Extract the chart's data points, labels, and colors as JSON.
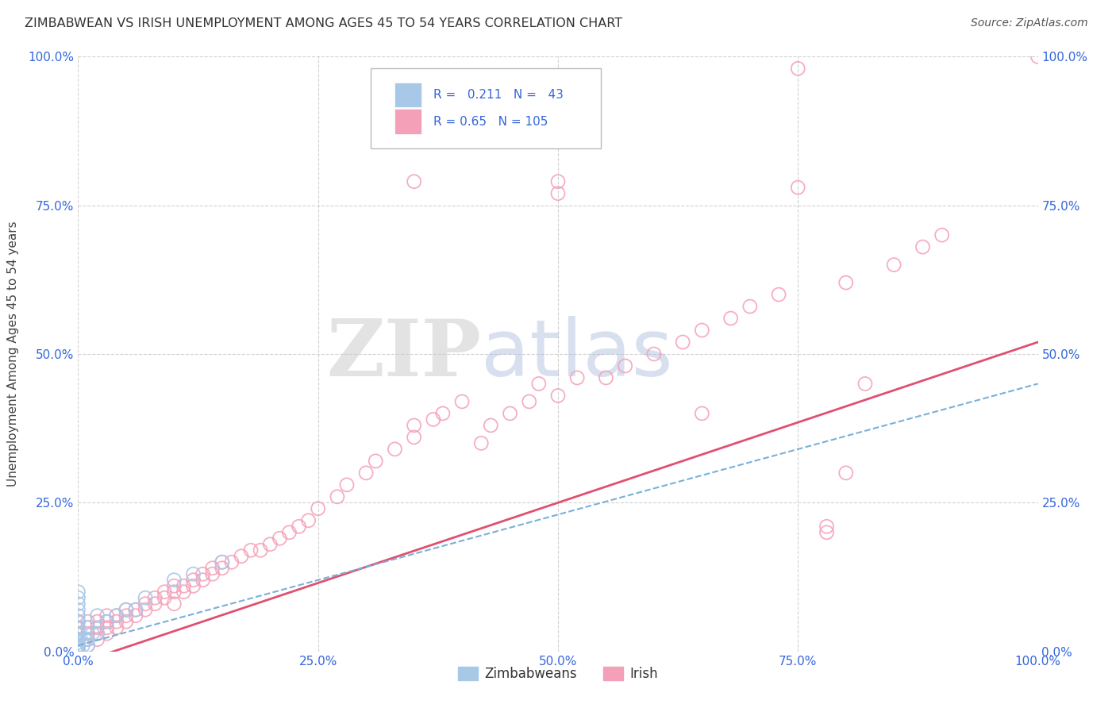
{
  "title": "ZIMBABWEAN VS IRISH UNEMPLOYMENT AMONG AGES 45 TO 54 YEARS CORRELATION CHART",
  "source": "Source: ZipAtlas.com",
  "ylabel": "Unemployment Among Ages 45 to 54 years",
  "r_zimbabwean": 0.211,
  "n_zimbabwean": 43,
  "r_irish": 0.65,
  "n_irish": 105,
  "zim_color": "#a8c8e8",
  "zim_fill_color": "#a8c8e8",
  "irish_color": "#f4a0b8",
  "irish_fill_color": "#f4a0b8",
  "zim_trend_color": "#7ab0d8",
  "irish_trend_color": "#e05070",
  "watermark_zip": "ZIP",
  "watermark_atlas": "atlas",
  "background_color": "#ffffff",
  "grid_color": "#cccccc",
  "tick_label_color": "#3366dd",
  "title_color": "#333333",
  "legend_text_color": "#3366dd",
  "xlim": [
    0,
    1
  ],
  "ylim": [
    0,
    1
  ],
  "xticks": [
    0,
    0.25,
    0.5,
    0.75,
    1.0
  ],
  "yticks": [
    0,
    0.25,
    0.5,
    0.75,
    1.0
  ],
  "xtick_labels": [
    "0.0%",
    "25.0%",
    "50.0%",
    "75.0%",
    "100.0%"
  ],
  "ytick_labels": [
    "0.0%",
    "25.0%",
    "50.0%",
    "75.0%",
    "100.0%"
  ],
  "irish_trend_x": [
    0.0,
    1.0
  ],
  "irish_trend_y": [
    -0.02,
    0.52
  ],
  "zim_trend_x": [
    0.0,
    1.0
  ],
  "zim_trend_y": [
    0.01,
    0.45
  ],
  "irish_scatter_x": [
    0.0,
    0.0,
    0.0,
    0.0,
    0.0,
    0.0,
    0.0,
    0.0,
    0.0,
    0.0,
    0.0,
    0.0,
    0.0,
    0.0,
    0.0,
    0.01,
    0.01,
    0.01,
    0.01,
    0.01,
    0.02,
    0.02,
    0.02,
    0.02,
    0.03,
    0.03,
    0.03,
    0.03,
    0.04,
    0.04,
    0.04,
    0.05,
    0.05,
    0.05,
    0.06,
    0.06,
    0.07,
    0.07,
    0.08,
    0.08,
    0.09,
    0.09,
    0.1,
    0.1,
    0.1,
    0.11,
    0.11,
    0.12,
    0.12,
    0.13,
    0.13,
    0.14,
    0.14,
    0.15,
    0.15,
    0.16,
    0.17,
    0.18,
    0.19,
    0.2,
    0.21,
    0.22,
    0.23,
    0.24,
    0.25,
    0.27,
    0.28,
    0.3,
    0.31,
    0.33,
    0.35,
    0.37,
    0.38,
    0.4,
    0.42,
    0.43,
    0.45,
    0.47,
    0.48,
    0.5,
    0.52,
    0.55,
    0.57,
    0.6,
    0.63,
    0.65,
    0.68,
    0.7,
    0.73,
    0.75,
    0.78,
    0.8,
    0.82,
    0.85,
    0.88,
    0.9,
    0.35,
    0.5,
    0.65,
    0.78,
    0.8,
    1.0,
    0.75,
    0.5,
    0.35
  ],
  "irish_scatter_y": [
    0.0,
    0.0,
    0.0,
    0.01,
    0.01,
    0.01,
    0.01,
    0.02,
    0.02,
    0.03,
    0.03,
    0.04,
    0.04,
    0.05,
    0.05,
    0.01,
    0.02,
    0.03,
    0.04,
    0.05,
    0.02,
    0.03,
    0.04,
    0.05,
    0.03,
    0.04,
    0.05,
    0.06,
    0.04,
    0.05,
    0.06,
    0.05,
    0.06,
    0.07,
    0.06,
    0.07,
    0.07,
    0.08,
    0.08,
    0.09,
    0.09,
    0.1,
    0.08,
    0.1,
    0.11,
    0.1,
    0.11,
    0.11,
    0.12,
    0.12,
    0.13,
    0.13,
    0.14,
    0.14,
    0.15,
    0.15,
    0.16,
    0.17,
    0.17,
    0.18,
    0.19,
    0.2,
    0.21,
    0.22,
    0.24,
    0.26,
    0.28,
    0.3,
    0.32,
    0.34,
    0.36,
    0.39,
    0.4,
    0.42,
    0.35,
    0.38,
    0.4,
    0.42,
    0.45,
    0.43,
    0.46,
    0.46,
    0.48,
    0.5,
    0.52,
    0.54,
    0.56,
    0.58,
    0.6,
    0.78,
    0.21,
    0.3,
    0.45,
    0.65,
    0.68,
    0.7,
    0.38,
    0.79,
    0.4,
    0.2,
    0.62,
    1.0,
    0.98,
    0.77,
    0.79
  ],
  "zim_scatter_x": [
    0.0,
    0.0,
    0.0,
    0.0,
    0.0,
    0.0,
    0.0,
    0.0,
    0.0,
    0.0,
    0.0,
    0.0,
    0.0,
    0.0,
    0.0,
    0.0,
    0.0,
    0.0,
    0.0,
    0.0,
    0.0,
    0.0,
    0.0,
    0.0,
    0.0,
    0.0,
    0.0,
    0.005,
    0.007,
    0.01,
    0.01,
    0.01,
    0.015,
    0.02,
    0.02,
    0.03,
    0.04,
    0.05,
    0.06,
    0.07,
    0.1,
    0.12,
    0.15
  ],
  "zim_scatter_y": [
    0.0,
    0.0,
    0.0,
    0.0,
    0.0,
    0.0,
    0.0,
    0.0,
    0.0,
    0.0,
    0.005,
    0.005,
    0.01,
    0.01,
    0.01,
    0.015,
    0.02,
    0.02,
    0.03,
    0.03,
    0.04,
    0.05,
    0.06,
    0.07,
    0.08,
    0.09,
    0.1,
    0.01,
    0.02,
    0.01,
    0.02,
    0.04,
    0.03,
    0.03,
    0.06,
    0.05,
    0.06,
    0.07,
    0.07,
    0.09,
    0.12,
    0.13,
    0.15
  ]
}
